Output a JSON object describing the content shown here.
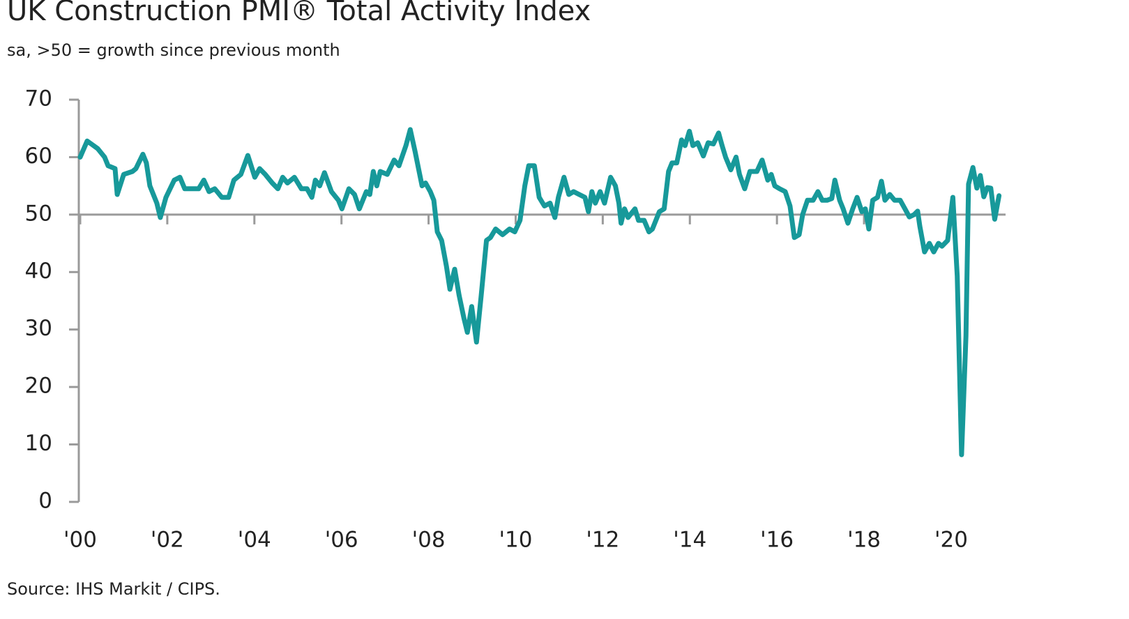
{
  "chart_data": {
    "type": "line",
    "title": "UK Construction PMI® Total Activity Index",
    "subtitle": "sa, >50 = growth since previous month",
    "source": "Source: IHS Markit / CIPS.",
    "color": "#17999a",
    "reference_line": 50,
    "x": [
      2000.0,
      2000.16,
      2000.4,
      2000.56,
      2000.64,
      2000.8,
      2000.85,
      2001.0,
      2001.2,
      2001.28,
      2001.44,
      2001.52,
      2001.6,
      2001.76,
      2001.84,
      2001.97,
      2002.16,
      2002.29,
      2002.4,
      2002.56,
      2002.72,
      2002.84,
      2002.96,
      2003.09,
      2003.25,
      2003.41,
      2003.53,
      2003.69,
      2003.85,
      2004.01,
      2004.12,
      2004.25,
      2004.41,
      2004.54,
      2004.65,
      2004.76,
      2004.92,
      2005.08,
      2005.21,
      2005.32,
      2005.4,
      2005.5,
      2005.61,
      2005.77,
      2005.93,
      2006.01,
      2006.17,
      2006.3,
      2006.41,
      2006.57,
      2006.65,
      2006.73,
      2006.81,
      2006.89,
      2007.05,
      2007.21,
      2007.32,
      2007.48,
      2007.58,
      2007.69,
      2007.77,
      2007.85,
      2007.93,
      2008.04,
      2008.12,
      2008.2,
      2008.3,
      2008.41,
      2008.49,
      2008.6,
      2008.7,
      2008.81,
      2008.89,
      2008.99,
      2009.1,
      2009.21,
      2009.33,
      2009.42,
      2009.54,
      2009.7,
      2009.86,
      2009.98,
      2010.1,
      2010.21,
      2010.3,
      2010.43,
      2010.54,
      2010.66,
      2010.79,
      2010.9,
      2010.98,
      2011.11,
      2011.22,
      2011.33,
      2011.46,
      2011.59,
      2011.67,
      2011.75,
      2011.83,
      2011.94,
      2012.04,
      2012.18,
      2012.29,
      2012.37,
      2012.42,
      2012.5,
      2012.58,
      2012.74,
      2012.82,
      2012.95,
      2013.06,
      2013.14,
      2013.3,
      2013.41,
      2013.51,
      2013.59,
      2013.7,
      2013.81,
      2013.89,
      2013.99,
      2014.07,
      2014.18,
      2014.31,
      2014.42,
      2014.54,
      2014.66,
      2014.74,
      2014.82,
      2014.94,
      2015.06,
      2015.14,
      2015.26,
      2015.38,
      2015.54,
      2015.66,
      2015.79,
      2015.87,
      2015.95,
      2016.06,
      2016.19,
      2016.3,
      2016.4,
      2016.51,
      2016.59,
      2016.7,
      2016.83,
      2016.94,
      2017.04,
      2017.15,
      2017.26,
      2017.33,
      2017.44,
      2017.52,
      2017.63,
      2017.74,
      2017.84,
      2017.95,
      2018.03,
      2018.11,
      2018.2,
      2018.31,
      2018.4,
      2018.48,
      2018.59,
      2018.7,
      2018.83,
      2018.94,
      2019.04,
      2019.15,
      2019.23,
      2019.28,
      2019.39,
      2019.5,
      2019.6,
      2019.71,
      2019.79,
      2019.92,
      2020.04,
      2020.14,
      2020.24,
      2020.34,
      2020.4,
      2020.5,
      2020.59,
      2020.67,
      2020.75,
      2020.83,
      2020.91,
      2021.0,
      2021.1
    ],
    "values": [
      60,
      62.8,
      61.5,
      60,
      58.5,
      58,
      53.5,
      57,
      57.5,
      58,
      60.5,
      59,
      55,
      52,
      49.5,
      53,
      56,
      56.5,
      54.5,
      54.5,
      54.5,
      56,
      54,
      54.5,
      53,
      53,
      56,
      57,
      60.3,
      56.5,
      58,
      57,
      55.5,
      54.5,
      56.5,
      55.5,
      56.5,
      54.5,
      54.5,
      53,
      56,
      55,
      57.3,
      54,
      52.5,
      51,
      54.5,
      53.5,
      51,
      54,
      53.5,
      57.5,
      55,
      57.5,
      57,
      59.5,
      58.5,
      62,
      64.8,
      61,
      58,
      55,
      55.5,
      54,
      52.5,
      47,
      45.5,
      41,
      37,
      40.5,
      36,
      32,
      29.5,
      34,
      27.8,
      36,
      45.5,
      46,
      47.5,
      46.5,
      47.5,
      47,
      49,
      55,
      58.5,
      58.5,
      53,
      51.5,
      52,
      49.5,
      53,
      56.5,
      53.5,
      54,
      53.5,
      53,
      50.5,
      54,
      52,
      54,
      52,
      56.5,
      55,
      52,
      48.5,
      51,
      49.5,
      51,
      49,
      49,
      47,
      47.5,
      50.5,
      51,
      57.5,
      59,
      59,
      63,
      62,
      64.5,
      62,
      62.5,
      60.2,
      62.5,
      62.3,
      64.2,
      62,
      60,
      57.8,
      60,
      57,
      54.5,
      57.5,
      57.5,
      59.5,
      56,
      57,
      55,
      54.5,
      54,
      51.5,
      46,
      46.5,
      50,
      52.5,
      52.5,
      54,
      52.5,
      52.5,
      52.8,
      56,
      52.5,
      51,
      48.5,
      51,
      53,
      50.5,
      51,
      47.5,
      52.5,
      53,
      55.8,
      52.5,
      53.5,
      52.5,
      52.5,
      51,
      49.6,
      50,
      50.6,
      48,
      43.5,
      45,
      43.5,
      45,
      44.5,
      45.5,
      53,
      39.3,
      8.2,
      28.9,
      55.3,
      58.2,
      54.6,
      56.8,
      53.1,
      54.7,
      54.6,
      49.2,
      53.3
    ],
    "xlim": [
      2000,
      2021.25
    ],
    "xticks": [
      {
        "value": 2000,
        "label": "'00"
      },
      {
        "value": 2002,
        "label": "'02"
      },
      {
        "value": 2004,
        "label": "'04"
      },
      {
        "value": 2006,
        "label": "'06"
      },
      {
        "value": 2008,
        "label": "'08"
      },
      {
        "value": 2010,
        "label": "'10"
      },
      {
        "value": 2012,
        "label": "'12"
      },
      {
        "value": 2014,
        "label": "'14"
      },
      {
        "value": 2016,
        "label": "'16"
      },
      {
        "value": 2018,
        "label": "'18"
      },
      {
        "value": 2020,
        "label": "'20"
      }
    ],
    "ylim": [
      0,
      70
    ],
    "yticks": [
      0,
      10,
      20,
      30,
      40,
      50,
      60,
      70
    ]
  }
}
